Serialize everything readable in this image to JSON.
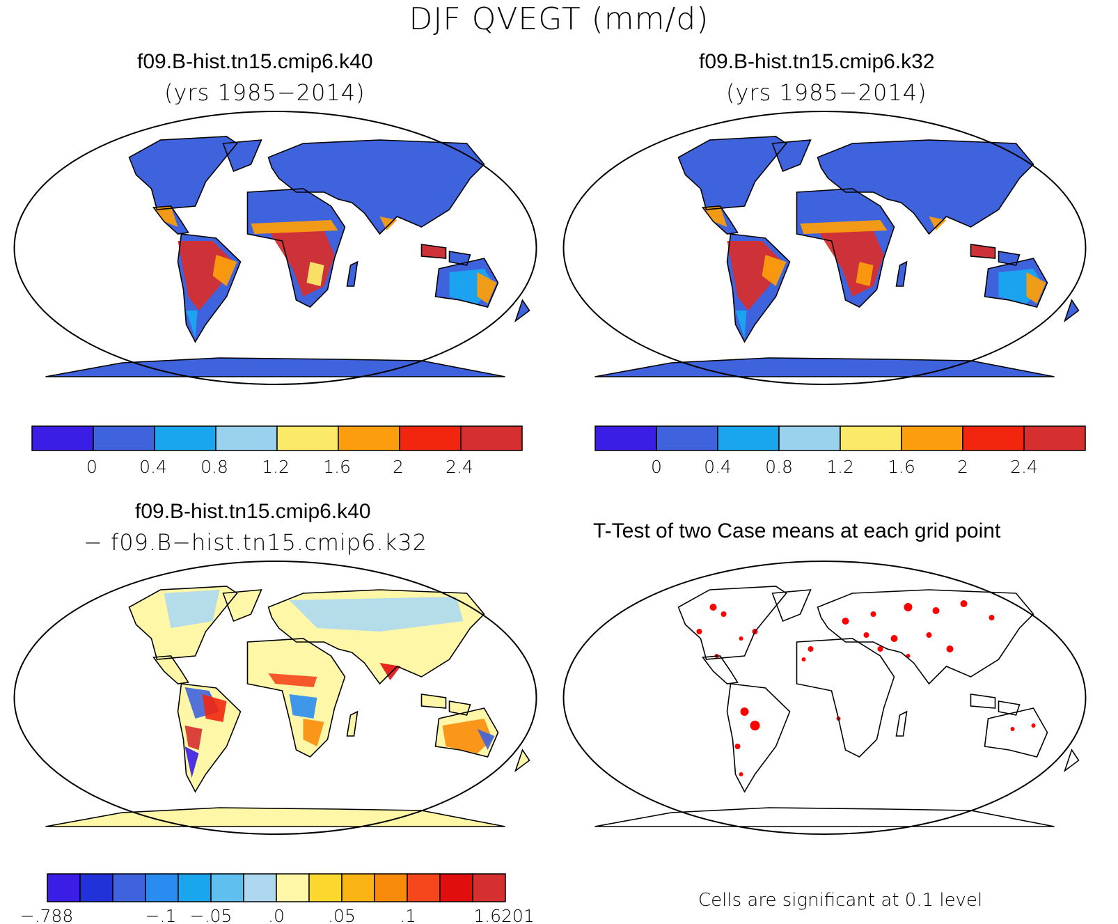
{
  "main_title": "DJF QVEGT (mm/d)",
  "panels": [
    {
      "title": "f09.B-hist.tn15.cmip6.k40",
      "subtitle": "(yrs 1985−2014)"
    },
    {
      "title": "f09.B-hist.tn15.cmip6.k32",
      "subtitle": "(yrs 1985−2014)"
    },
    {
      "title": "f09.B-hist.tn15.cmip6.k40",
      "subtitle": "− f09.B−hist.tn15.cmip6.k32"
    },
    {
      "title": "T-Test of two Case means at each grid point",
      "subtitle": ""
    }
  ],
  "colorbars": [
    {
      "colors": [
        "#3a1ee6",
        "#3f63dd",
        "#19a6ef",
        "#9ad2ee",
        "#fbe968",
        "#fb9d0c",
        "#f2260f",
        "#d52f2f"
      ],
      "labels": [
        "0",
        "0.4",
        "0.8",
        "1.2",
        "1.6",
        "2",
        "2.4"
      ]
    },
    {
      "colors": [
        "#3a1ee6",
        "#3f63dd",
        "#19a6ef",
        "#9ad2ee",
        "#fbe968",
        "#fb9d0c",
        "#f2260f",
        "#d52f2f"
      ],
      "labels": [
        "0",
        "0.4",
        "0.8",
        "1.2",
        "1.6",
        "2",
        "2.4"
      ]
    },
    {
      "colors": [
        "#3a1ee6",
        "#2132d8",
        "#3f63dd",
        "#2a8cf0",
        "#19a6ef",
        "#5fc0f0",
        "#add8f0",
        "#fef7a8",
        "#fcd72e",
        "#fbb416",
        "#f98b0a",
        "#f5461c",
        "#e10e0e",
        "#d52f2f"
      ],
      "labels": [
        "−.788",
        "−.1",
        "−.05",
        ".0",
        ".05",
        ".1",
        "1.6201"
      ]
    }
  ],
  "footnote": "Cells are significant at 0.1 level"
}
